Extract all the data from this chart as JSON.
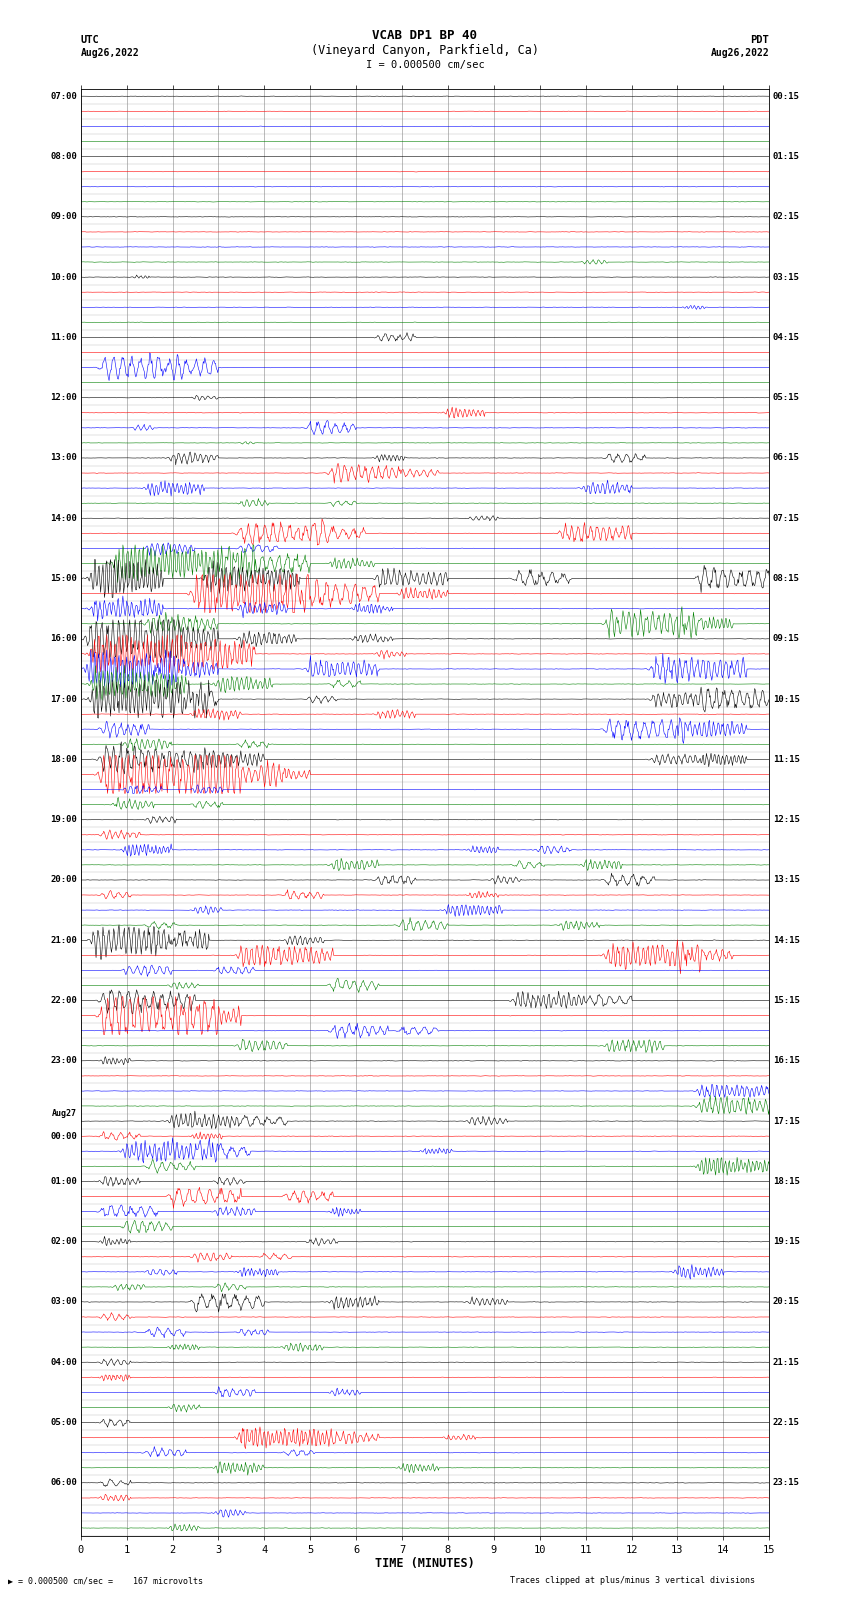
{
  "title_line1": "VCAB DP1 BP 40",
  "title_line2": "(Vineyard Canyon, Parkfield, Ca)",
  "scale_text": "I = 0.000500 cm/sec",
  "bottom_label": "TIME (MINUTES)",
  "bottom_note_left": "= 0.000500 cm/sec =    167 microvolts",
  "bottom_note_right": "Traces clipped at plus/minus 3 vertical divisions",
  "colors": [
    "black",
    "red",
    "blue",
    "green"
  ],
  "fig_width": 8.5,
  "fig_height": 16.13,
  "bg_color": "white",
  "grid_color": "#999999",
  "num_hours": 24,
  "traces_per_hour": 4,
  "left_utc_labels": [
    "07:00",
    "",
    "",
    "",
    "08:00",
    "",
    "",
    "",
    "09:00",
    "",
    "",
    "",
    "10:00",
    "",
    "",
    "",
    "11:00",
    "",
    "",
    "",
    "12:00",
    "",
    "",
    "",
    "13:00",
    "",
    "",
    "",
    "14:00",
    "",
    "",
    "",
    "15:00",
    "",
    "",
    "",
    "16:00",
    "",
    "",
    "",
    "17:00",
    "",
    "",
    "",
    "18:00",
    "",
    "",
    "",
    "19:00",
    "",
    "",
    "",
    "20:00",
    "",
    "",
    "",
    "21:00",
    "",
    "",
    "",
    "22:00",
    "",
    "",
    "",
    "23:00",
    "",
    "",
    "",
    "Aug27",
    "00:00",
    "",
    "",
    "01:00",
    "",
    "",
    "",
    "02:00",
    "",
    "",
    "",
    "03:00",
    "",
    "",
    "",
    "04:00",
    "",
    "",
    "",
    "05:00",
    "",
    "",
    "",
    "06:00",
    "",
    "",
    ""
  ],
  "right_pdt_labels": [
    "00:15",
    "",
    "",
    "",
    "01:15",
    "",
    "",
    "",
    "02:15",
    "",
    "",
    "",
    "03:15",
    "",
    "",
    "",
    "04:15",
    "",
    "",
    "",
    "05:15",
    "",
    "",
    "",
    "06:15",
    "",
    "",
    "",
    "07:15",
    "",
    "",
    "",
    "08:15",
    "",
    "",
    "",
    "09:15",
    "",
    "",
    "",
    "10:15",
    "",
    "",
    "",
    "11:15",
    "",
    "",
    "",
    "12:15",
    "",
    "",
    "",
    "13:15",
    "",
    "",
    "",
    "14:15",
    "",
    "",
    "",
    "15:15",
    "",
    "",
    "",
    "16:15",
    "",
    "",
    "",
    "17:15",
    "",
    "",
    "",
    "18:15",
    "",
    "",
    "",
    "19:15",
    "",
    "",
    "",
    "20:15",
    "",
    "",
    "",
    "21:15",
    "",
    "",
    "",
    "22:15",
    "",
    "",
    "",
    "23:15",
    "",
    "",
    ""
  ]
}
